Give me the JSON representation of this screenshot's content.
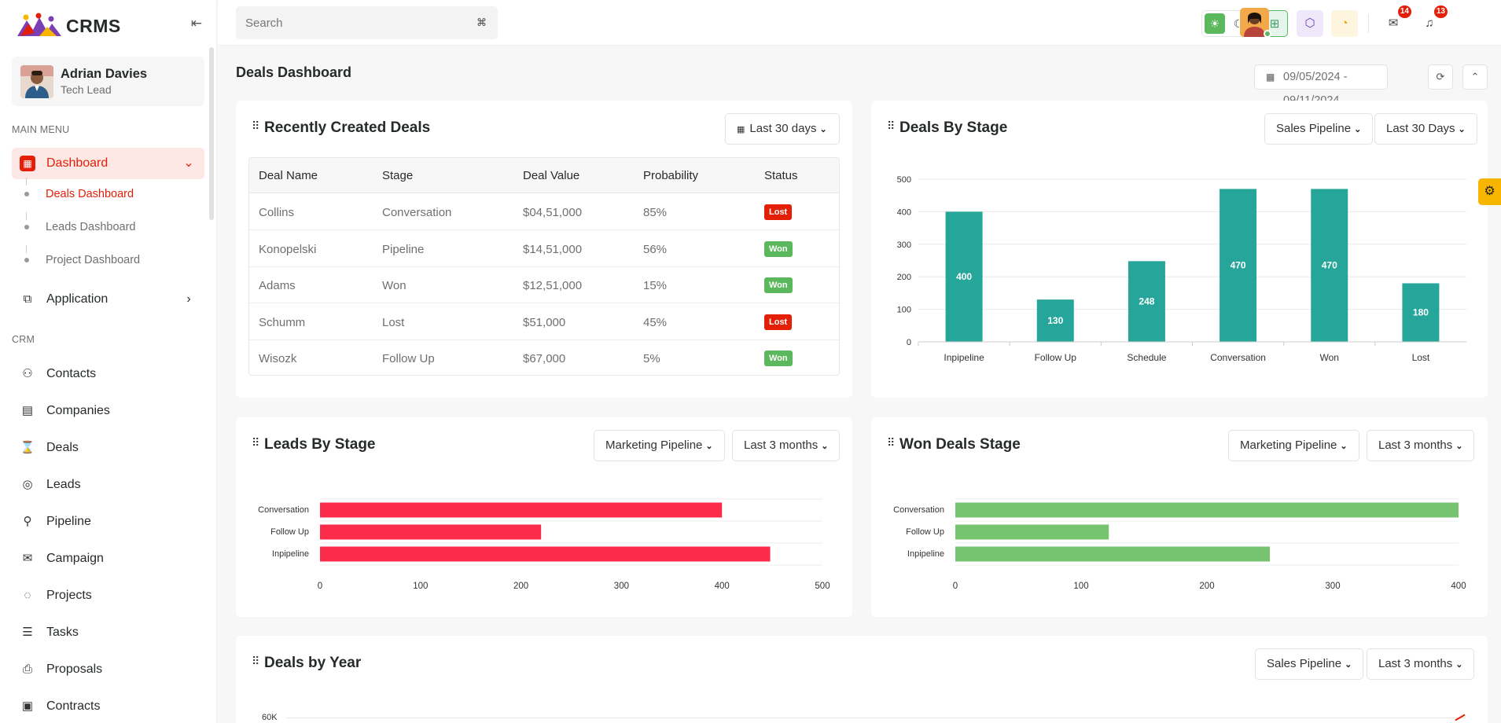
{
  "app": {
    "name": "CRMS",
    "collapse_icon": "collapse-sidebar-icon"
  },
  "user": {
    "name": "Adrian Davies",
    "role": "Tech Lead"
  },
  "sidebar": {
    "main_heading": "MAIN MENU",
    "dashboard": {
      "label": "Dashboard",
      "icon": "dashboard-icon",
      "expanded": true
    },
    "sub_items": [
      "Deals Dashboard",
      "Leads Dashboard",
      "Project Dashboard"
    ],
    "application": {
      "label": "Application",
      "icon": "application-icon"
    },
    "crm_heading": "CRM",
    "crm_items": [
      {
        "label": "Contacts",
        "icon": "contacts-icon"
      },
      {
        "label": "Companies",
        "icon": "companies-icon"
      },
      {
        "label": "Deals",
        "icon": "deals-icon"
      },
      {
        "label": "Leads",
        "icon": "leads-icon"
      },
      {
        "label": "Pipeline",
        "icon": "pipeline-icon"
      },
      {
        "label": "Campaign",
        "icon": "campaign-icon"
      },
      {
        "label": "Projects",
        "icon": "projects-icon"
      },
      {
        "label": "Tasks",
        "icon": "tasks-icon"
      },
      {
        "label": "Proposals",
        "icon": "proposals-icon"
      },
      {
        "label": "Contracts",
        "icon": "contracts-icon"
      }
    ]
  },
  "header": {
    "search_placeholder": "Search",
    "search_shortcut": "⌘",
    "notifications_count": "14",
    "alerts_count": "13"
  },
  "page": {
    "title": "Deals Dashboard",
    "date_range": "09/05/2024 - 09/11/2024"
  },
  "recent_deals": {
    "title": "Recently Created Deals",
    "filter": "Last 30 days",
    "columns": [
      "Deal Name",
      "Stage",
      "Deal Value",
      "Probability",
      "Status"
    ],
    "rows": [
      {
        "name": "Collins",
        "stage": "Conversation",
        "value": "$04,51,000",
        "probability": "85%",
        "status": "Lost"
      },
      {
        "name": "Konopelski",
        "stage": "Pipeline",
        "value": "$14,51,000",
        "probability": "56%",
        "status": "Won"
      },
      {
        "name": "Adams",
        "stage": "Won",
        "value": "$12,51,000",
        "probability": "15%",
        "status": "Won"
      },
      {
        "name": "Schumm",
        "stage": "Lost",
        "value": "$51,000",
        "probability": "45%",
        "status": "Lost"
      },
      {
        "name": "Wisozk",
        "stage": "Follow Up",
        "value": "$67,000",
        "probability": "5%",
        "status": "Won"
      }
    ],
    "status_colors": {
      "Lost": "#e41f07",
      "Won": "#5cb85c"
    }
  },
  "deals_by_stage": {
    "title": "Deals By Stage",
    "pipeline_filter": "Sales Pipeline",
    "period_filter": "Last 30 Days"
  },
  "leads_by_stage": {
    "title": "Leads By Stage",
    "pipeline_filter": "Marketing Pipeline",
    "period_filter": "Last 3 months"
  },
  "won_deals_stage": {
    "title": "Won Deals Stage",
    "pipeline_filter": "Marketing Pipeline",
    "period_filter": "Last 3 months"
  },
  "deals_by_year": {
    "title": "Deals by Year",
    "pipeline_filter": "Sales Pipeline",
    "period_filter": "Last 3 months",
    "y_top_label": "60K"
  },
  "chart_data": [
    {
      "type": "bar",
      "title": "Deals By Stage",
      "categories": [
        "Inpipeline",
        "Follow Up",
        "Schedule",
        "Conversation",
        "Won",
        "Lost"
      ],
      "values": [
        400,
        130,
        248,
        470,
        470,
        180
      ],
      "ylim": [
        0,
        500
      ],
      "yticks": [
        0,
        100,
        200,
        300,
        400,
        500
      ],
      "color": "#26a69a",
      "data_labels": true,
      "grid": true
    },
    {
      "type": "bar",
      "orientation": "horizontal",
      "title": "Leads By Stage",
      "categories": [
        "Conversation",
        "Follow Up",
        "Inpipeline"
      ],
      "values": [
        400,
        220,
        448
      ],
      "xlim": [
        0,
        500
      ],
      "xticks": [
        0,
        100,
        200,
        300,
        400,
        500
      ],
      "color": "#fc2b4a",
      "grid": true
    },
    {
      "type": "bar",
      "orientation": "horizontal",
      "title": "Won Deals Stage",
      "categories": [
        "Conversation",
        "Follow Up",
        "Inpipeline"
      ],
      "values": [
        400,
        122,
        250
      ],
      "xlim": [
        0,
        400
      ],
      "xticks": [
        0,
        100,
        200,
        300,
        400
      ],
      "color": "#77c46e",
      "grid": true
    }
  ]
}
